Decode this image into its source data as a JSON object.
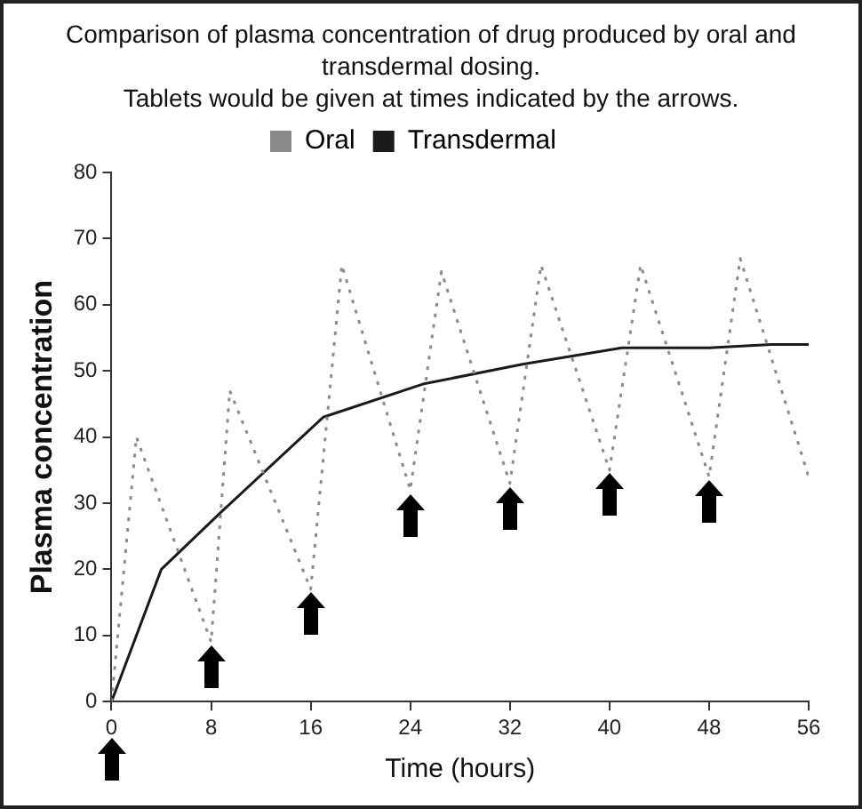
{
  "chart_data": {
    "type": "line",
    "title": "Comparison of plasma concentration of drug produced by oral and transdermal dosing.",
    "subtitle": "Tablets would be given at times indicated by the arrows.",
    "xlabel": "Time (hours)",
    "ylabel": "Plasma concentration",
    "series": [
      {
        "name": "Oral",
        "color": "#8a8a8a",
        "line_style": "dotted",
        "x": [
          0,
          2,
          8,
          9.5,
          16,
          18.5,
          24,
          26.5,
          32,
          34.5,
          40,
          42.5,
          48,
          50.5,
          56
        ],
        "values": [
          0,
          40,
          9,
          47,
          17,
          66,
          32,
          65,
          33,
          66,
          35,
          66,
          34,
          67,
          34
        ]
      },
      {
        "name": "Transdermal",
        "color": "#1a1a1a",
        "line_style": "solid",
        "x": [
          0,
          4,
          9,
          17,
          25,
          33,
          41,
          48,
          53,
          56
        ],
        "values": [
          0,
          20,
          29,
          43,
          48,
          51,
          53.5,
          53.5,
          54,
          54
        ]
      }
    ],
    "xlim": [
      0,
      56
    ],
    "xticks": [
      0,
      8,
      16,
      24,
      32,
      40,
      48,
      56
    ],
    "ylim": [
      0,
      80
    ],
    "yticks": [
      0,
      10,
      20,
      30,
      40,
      50,
      60,
      70,
      80
    ],
    "grid": false,
    "legend": "top",
    "marker": "none"
  }
}
